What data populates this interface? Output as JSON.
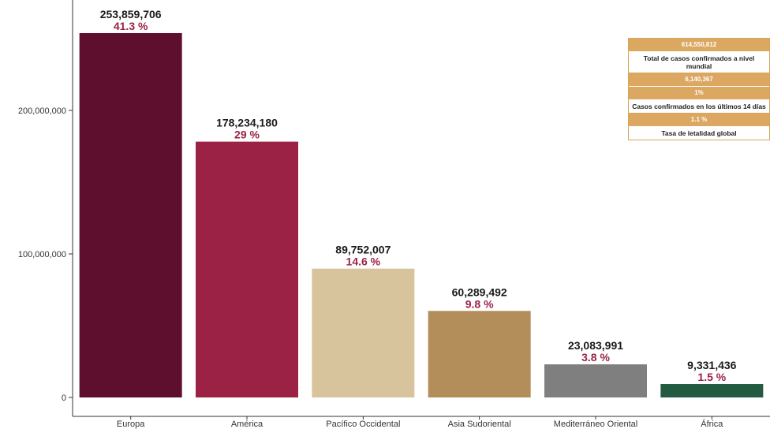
{
  "chart_data": {
    "type": "bar",
    "categories": [
      "Europa",
      "América",
      "Pacífico Occidental",
      "Asia Sudoriental",
      "Mediterráneo Oriental",
      "África"
    ],
    "values": [
      253859706,
      178234180,
      89752007,
      60289492,
      23083991,
      9331436
    ],
    "value_labels": [
      "253,859,706",
      "178,234,180",
      "89,752,007",
      "60,289,492",
      "23,083,991",
      "9,331,436"
    ],
    "percent_labels": [
      "41.3 %",
      "29 %",
      "14.6 %",
      "9.8 %",
      "3.8 %",
      "1.5 %"
    ],
    "colors": [
      "#5e0f2e",
      "#9b2244",
      "#d7c49c",
      "#b38d5a",
      "#7f7f7f",
      "#235b40"
    ],
    "percent_color": "#9b2244",
    "ylim": [
      0,
      260000000
    ],
    "yticks": [
      0,
      100000000,
      200000000
    ],
    "ytick_labels": [
      "0",
      "100,000,000",
      "200,000,000"
    ],
    "grid": false
  },
  "summary": {
    "accent": "#dba761",
    "total_value": "614,550,812",
    "total_label": "Total de casos confirmados a nivel mundial",
    "recent_value": "6,140,367",
    "recent_pct": "1%",
    "recent_label": "Casos confirmados en los últimos 14 días",
    "lethality_value": "1.1 %",
    "lethality_label": "Tasa de letalidad global"
  }
}
